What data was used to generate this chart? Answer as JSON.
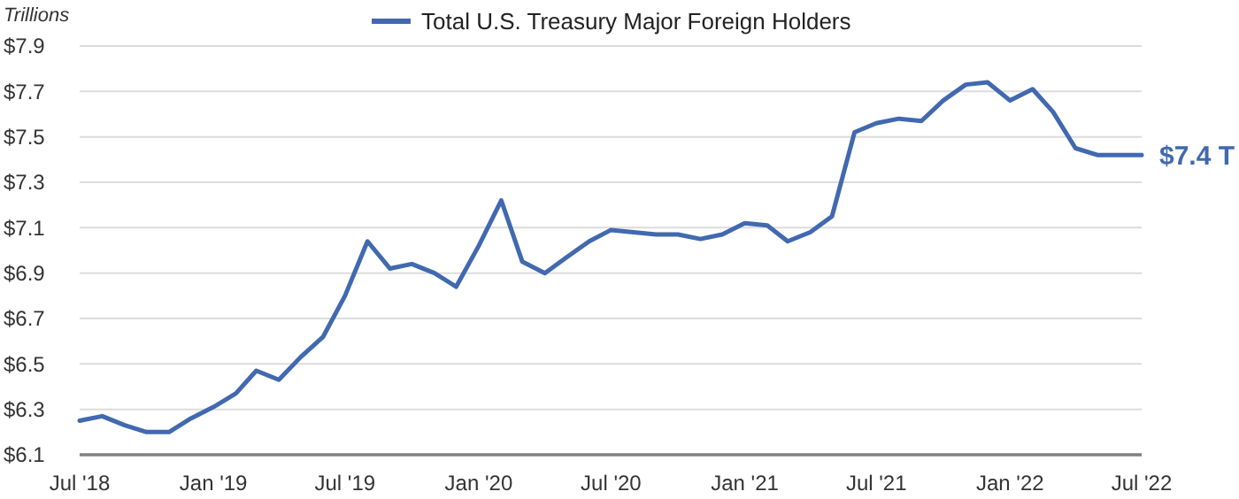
{
  "chart_data": {
    "type": "line",
    "ylabel": "Trillions",
    "legend": "top",
    "grid": "y",
    "line_style": "solid",
    "marker": "none",
    "x": [
      "2018-07",
      "2018-08",
      "2018-09",
      "2018-10",
      "2018-11",
      "2018-12",
      "2019-01",
      "2019-02",
      "2019-03",
      "2019-04",
      "2019-05",
      "2019-06",
      "2019-07",
      "2019-08",
      "2019-09",
      "2019-10",
      "2019-11",
      "2019-12",
      "2020-01",
      "2020-02",
      "2020-03",
      "2020-04",
      "2020-05",
      "2020-06",
      "2020-07",
      "2020-08",
      "2020-09",
      "2020-10",
      "2020-11",
      "2020-12",
      "2021-01",
      "2021-02",
      "2021-03",
      "2021-04",
      "2021-05",
      "2021-06",
      "2021-07",
      "2021-08",
      "2021-09",
      "2021-10",
      "2021-11",
      "2021-12",
      "2022-01",
      "2022-02",
      "2022-03",
      "2022-04",
      "2022-05",
      "2022-06",
      "2022-07"
    ],
    "series": [
      {
        "name": "Total U.S. Treasury Major Foreign Holders",
        "color": "#4169b0",
        "values": [
          6.25,
          6.27,
          6.23,
          6.2,
          6.2,
          6.26,
          6.31,
          6.37,
          6.47,
          6.43,
          6.53,
          6.62,
          6.8,
          7.04,
          6.92,
          6.94,
          6.9,
          6.84,
          7.02,
          7.22,
          6.95,
          6.9,
          6.97,
          7.04,
          7.09,
          7.08,
          7.07,
          7.07,
          7.05,
          7.07,
          7.12,
          7.11,
          7.04,
          7.08,
          7.15,
          7.52,
          7.56,
          7.58,
          7.57,
          7.66,
          7.73,
          7.74,
          7.66,
          7.71,
          7.61,
          7.45,
          7.42,
          7.42,
          7.42
        ]
      }
    ],
    "annotations": [
      {
        "text": "$7.4 T",
        "x": "2022-07",
        "y": 7.42
      }
    ],
    "xlim": [
      "2018-07",
      "2022-07"
    ],
    "xticks": [
      {
        "value": "2018-07",
        "label": "Jul '18"
      },
      {
        "value": "2019-01",
        "label": "Jan '19"
      },
      {
        "value": "2019-07",
        "label": "Jul '19"
      },
      {
        "value": "2020-01",
        "label": "Jan '20"
      },
      {
        "value": "2020-07",
        "label": "Jul '20"
      },
      {
        "value": "2021-01",
        "label": "Jan '21"
      },
      {
        "value": "2021-07",
        "label": "Jul '21"
      },
      {
        "value": "2022-01",
        "label": "Jan '22"
      },
      {
        "value": "2022-07",
        "label": "Jul '22"
      }
    ],
    "ylim": [
      6.1,
      7.9
    ],
    "yticks": [
      {
        "value": 6.1,
        "label": "$6.1"
      },
      {
        "value": 6.3,
        "label": "$6.3"
      },
      {
        "value": 6.5,
        "label": "$6.5"
      },
      {
        "value": 6.7,
        "label": "$6.7"
      },
      {
        "value": 6.9,
        "label": "$6.9"
      },
      {
        "value": 7.1,
        "label": "$7.1"
      },
      {
        "value": 7.3,
        "label": "$7.3"
      },
      {
        "value": 7.5,
        "label": "$7.5"
      },
      {
        "value": 7.7,
        "label": "$7.7"
      },
      {
        "value": 7.9,
        "label": "$7.9"
      }
    ]
  }
}
